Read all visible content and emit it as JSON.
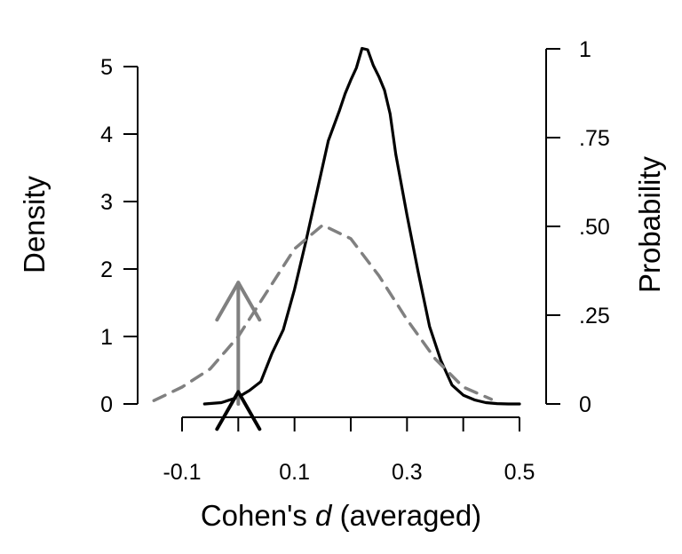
{
  "chart_data": {
    "type": "line",
    "xlabel_prefix": "Cohen's ",
    "xlabel_var": "d",
    "xlabel_suffix": " (averaged)",
    "ylabel_left": "Density",
    "ylabel_right": "Probability",
    "xlim": [
      -0.2,
      0.6
    ],
    "ylim_left": [
      0,
      5.3
    ],
    "ylim_right": [
      0,
      1
    ],
    "x_ticks": [
      -0.1,
      0,
      0.1,
      0.2,
      0.3,
      0.4,
      0.5
    ],
    "x_tick_labels": [
      {
        "value": -0.1,
        "label": "-0.1"
      },
      {
        "value": 0.1,
        "label": "0.1"
      },
      {
        "value": 0.3,
        "label": "0.3"
      },
      {
        "value": 0.5,
        "label": "0.5"
      }
    ],
    "left_ticks": [
      {
        "value": 0,
        "label": "0"
      },
      {
        "value": 1,
        "label": "1"
      },
      {
        "value": 2,
        "label": "2"
      },
      {
        "value": 3,
        "label": "3"
      },
      {
        "value": 4,
        "label": "4"
      },
      {
        "value": 5,
        "label": "5"
      }
    ],
    "right_ticks": [
      {
        "value": 0,
        "label": "0"
      },
      {
        "value": 0.25,
        "label": ".25"
      },
      {
        "value": 0.5,
        "label": ".50"
      },
      {
        "value": 0.75,
        "label": ".75"
      },
      {
        "value": 1,
        "label": "1"
      }
    ],
    "grid": false,
    "series": [
      {
        "id": "posterior",
        "style": "solid",
        "color": "#000000",
        "x": [
          -0.06,
          -0.03,
          0.0,
          0.02,
          0.04,
          0.06,
          0.08,
          0.1,
          0.12,
          0.14,
          0.16,
          0.18,
          0.19,
          0.2,
          0.21,
          0.22,
          0.23,
          0.24,
          0.25,
          0.26,
          0.27,
          0.28,
          0.3,
          0.32,
          0.34,
          0.36,
          0.38,
          0.4,
          0.42,
          0.44,
          0.46,
          0.48,
          0.5
        ],
        "y": [
          0.0,
          0.02,
          0.1,
          0.2,
          0.33,
          0.75,
          1.1,
          1.7,
          2.4,
          3.15,
          3.9,
          4.35,
          4.6,
          4.8,
          4.98,
          5.27,
          5.25,
          5.02,
          4.85,
          4.65,
          4.3,
          3.7,
          2.8,
          1.95,
          1.15,
          0.65,
          0.28,
          0.13,
          0.06,
          0.02,
          0.005,
          0.0,
          0.0
        ]
      },
      {
        "id": "prior",
        "style": "dashed",
        "color": "#808080",
        "x": [
          -0.15,
          -0.1,
          -0.05,
          0.0,
          0.05,
          0.1,
          0.15,
          0.2,
          0.25,
          0.3,
          0.35,
          0.4,
          0.45
        ],
        "y": [
          0.05,
          0.25,
          0.52,
          1.0,
          1.65,
          2.3,
          2.65,
          2.45,
          1.9,
          1.25,
          0.67,
          0.25,
          0.07
        ]
      }
    ],
    "arrows": [
      {
        "id": "prior-arrow",
        "x": 0,
        "y": 1.8,
        "color": "#808080"
      },
      {
        "id": "posterior-arrow",
        "x": 0,
        "y": 0.18,
        "color": "#000000"
      }
    ]
  }
}
